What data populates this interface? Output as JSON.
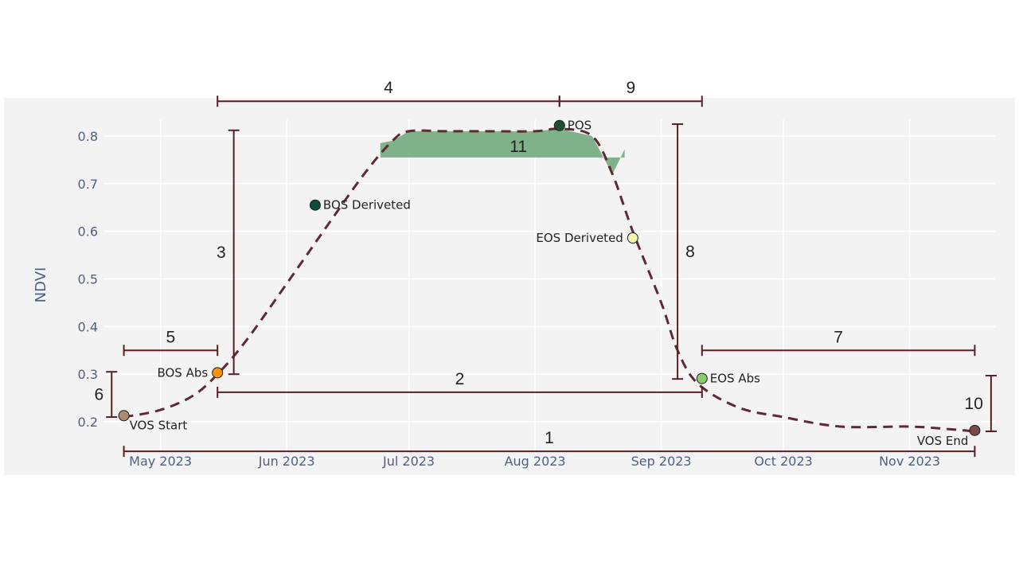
{
  "chart_data": {
    "type": "line",
    "ylabel": "NDVI",
    "xlabel": "",
    "ylim": [
      0.17,
      0.86
    ],
    "xlim": [
      "2023-04-17",
      "2023-11-22"
    ],
    "y_ticks": [
      0.2,
      0.3,
      0.4,
      0.5,
      0.6,
      0.7,
      0.8
    ],
    "x_ticks": [
      {
        "date": "2023-05-01",
        "label": "May 2023"
      },
      {
        "date": "2023-06-01",
        "label": "Jun 2023"
      },
      {
        "date": "2023-07-01",
        "label": "Jul 2023"
      },
      {
        "date": "2023-08-01",
        "label": "Aug 2023"
      },
      {
        "date": "2023-09-01",
        "label": "Sep 2023"
      },
      {
        "date": "2023-10-01",
        "label": "Oct 2023"
      },
      {
        "date": "2023-11-01",
        "label": "Nov 2023"
      }
    ],
    "grid": true,
    "series": [
      {
        "style": "dashed",
        "color": "#5e2933",
        "x": [
          "2023-04-22",
          "2023-05-01",
          "2023-05-09",
          "2023-05-15",
          "2023-05-22",
          "2023-06-01",
          "2023-06-10",
          "2023-06-20",
          "2023-06-27",
          "2023-07-01",
          "2023-07-10",
          "2023-07-20",
          "2023-08-01",
          "2023-08-07",
          "2023-08-15",
          "2023-08-20",
          "2023-08-25",
          "2023-09-01",
          "2023-09-05",
          "2023-09-10",
          "2023-09-20",
          "2023-10-01",
          "2023-10-15",
          "2023-11-01",
          "2023-11-10",
          "2023-11-17"
        ],
        "y": [
          0.21,
          0.225,
          0.255,
          0.3,
          0.37,
          0.49,
          0.6,
          0.72,
          0.79,
          0.81,
          0.81,
          0.81,
          0.81,
          0.815,
          0.8,
          0.72,
          0.6,
          0.45,
          0.35,
          0.28,
          0.23,
          0.21,
          0.19,
          0.19,
          0.185,
          0.18
        ]
      }
    ],
    "points": [
      {
        "name": "VOS Start",
        "x": "2023-04-22",
        "y": 0.213,
        "color": "#a98b6e",
        "label_pos": "below-right"
      },
      {
        "name": "BOS Abs",
        "x": "2023-05-15",
        "y": 0.303,
        "color": "#f2940e",
        "label_pos": "left"
      },
      {
        "name": "BOS Deriveted",
        "x": "2023-06-08",
        "y": 0.655,
        "color": "#0c4a3c",
        "label_pos": "right"
      },
      {
        "name": "POS",
        "x": "2023-08-07",
        "y": 0.822,
        "color": "#1f4f2c",
        "label_pos": "right"
      },
      {
        "name": "EOS Deriveted",
        "x": "2023-08-25",
        "y": 0.586,
        "color": "#f7f2b0",
        "label_pos": "left"
      },
      {
        "name": "EOS Abs",
        "x": "2023-09-11",
        "y": 0.291,
        "color": "#8ccb6d",
        "label_pos": "right"
      },
      {
        "name": "VOS End",
        "x": "2023-11-17",
        "y": 0.182,
        "color": "#7a4a42",
        "label_pos": "left"
      }
    ],
    "shaded_region": {
      "label": "11",
      "color": "#6aa477",
      "x_start": "2023-06-24",
      "x_end": "2023-08-23",
      "y_base": 0.755
    },
    "annotations": [
      {
        "label": "1",
        "orientation": "horizontal",
        "x_start": "2023-04-22",
        "x_end": "2023-11-17",
        "y": 0.138
      },
      {
        "label": "2",
        "orientation": "horizontal",
        "x_start": "2023-05-15",
        "x_end": "2023-09-11",
        "y": 0.262
      },
      {
        "label": "3",
        "orientation": "vertical",
        "x": "2023-05-19",
        "y_start": 0.3,
        "y_end": 0.812
      },
      {
        "label": "4",
        "orientation": "horizontal",
        "x_start": "2023-05-15",
        "x_end": "2023-08-07",
        "y": 0.873
      },
      {
        "label": "5",
        "orientation": "horizontal",
        "x_start": "2023-04-22",
        "x_end": "2023-05-15",
        "y": 0.35
      },
      {
        "label": "6",
        "orientation": "vertical",
        "x": "2023-04-19",
        "y_start": 0.21,
        "y_end": 0.305
      },
      {
        "label": "7",
        "orientation": "horizontal",
        "x_start": "2023-09-11",
        "x_end": "2023-11-17",
        "y": 0.35
      },
      {
        "label": "8",
        "orientation": "vertical",
        "x": "2023-09-05",
        "y_start": 0.29,
        "y_end": 0.825
      },
      {
        "label": "9",
        "orientation": "horizontal",
        "x_start": "2023-08-07",
        "x_end": "2023-09-11",
        "y": 0.873
      },
      {
        "label": "10",
        "orientation": "vertical",
        "x": "2023-11-21",
        "y_start": 0.18,
        "y_end": 0.297
      }
    ]
  }
}
